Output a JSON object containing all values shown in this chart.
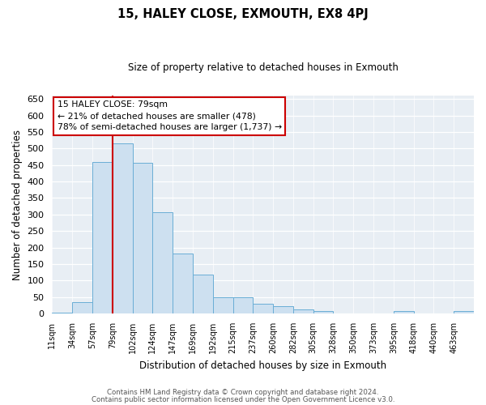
{
  "title": "15, HALEY CLOSE, EXMOUTH, EX8 4PJ",
  "subtitle": "Size of property relative to detached houses in Exmouth",
  "xlabel": "Distribution of detached houses by size in Exmouth",
  "ylabel": "Number of detached properties",
  "bin_edges": [
    0,
    1,
    2,
    3,
    4,
    5,
    6,
    7,
    8,
    9,
    10,
    11,
    12,
    13,
    14,
    15,
    16,
    17,
    18,
    19,
    20,
    21
  ],
  "bar_labels": [
    "11sqm",
    "34sqm",
    "57sqm",
    "79sqm",
    "102sqm",
    "124sqm",
    "147sqm",
    "169sqm",
    "192sqm",
    "215sqm",
    "237sqm",
    "260sqm",
    "282sqm",
    "305sqm",
    "328sqm",
    "350sqm",
    "373sqm",
    "395sqm",
    "418sqm",
    "440sqm",
    "463sqm"
  ],
  "bar_values": [
    3,
    35,
    458,
    515,
    457,
    307,
    182,
    118,
    50,
    50,
    29,
    22,
    13,
    8,
    0,
    0,
    0,
    8,
    0,
    0,
    8
  ],
  "bar_color": "#cde0f0",
  "bar_edge_color": "#6aaed6",
  "vline_x": 3,
  "vline_color": "#cc0000",
  "ylim": [
    0,
    660
  ],
  "yticks": [
    0,
    50,
    100,
    150,
    200,
    250,
    300,
    350,
    400,
    450,
    500,
    550,
    600,
    650
  ],
  "annotation_text": "15 HALEY CLOSE: 79sqm\n← 21% of detached houses are smaller (478)\n78% of semi-detached houses are larger (1,737) →",
  "annotation_box_color": "white",
  "annotation_box_edge": "#cc0000",
  "footer_line1": "Contains HM Land Registry data © Crown copyright and database right 2024.",
  "footer_line2": "Contains public sector information licensed under the Open Government Licence v3.0.",
  "bg_color": "#e8eef4"
}
